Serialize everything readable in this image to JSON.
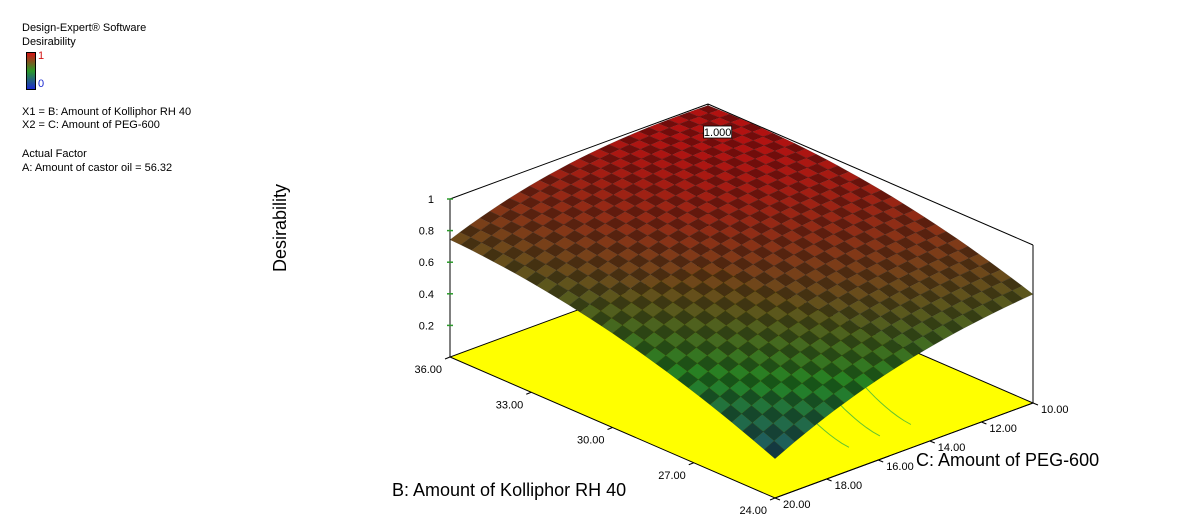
{
  "header": {
    "software": "Design-Expert® Software",
    "response": "Desirability",
    "colorbar_high": "1",
    "colorbar_low": "0",
    "x1": "X1 = B: Amount of Kolliphor RH 40",
    "x2": "X2 = C: Amount of PEG-600",
    "actual_factor_heading": "Actual Factor",
    "actual_factor": "A: Amount of castor oil = 56.32"
  },
  "chart_data": {
    "type": "surface3d",
    "zlabel": "Desirability",
    "xlabel": "B: Amount of Kolliphor RH 40",
    "ylabel": "C: Amount of PEG-600",
    "x_ticks": [
      "36.00",
      "33.00",
      "30.00",
      "27.00",
      "24.00"
    ],
    "y_ticks": [
      "10.00",
      "12.00",
      "14.00",
      "16.00",
      "18.00",
      "20.00"
    ],
    "z_ticks": [
      "1",
      "0.8",
      "0.6",
      "0.4",
      "0.2"
    ],
    "xlim": [
      24,
      36
    ],
    "ylim": [
      10,
      20
    ],
    "zlim": [
      0,
      1
    ],
    "peak_label": "1.000",
    "peak": {
      "B": 34.5,
      "C": 11.2,
      "desirability": 1.0
    },
    "floor_color": "#ffff00",
    "colors": {
      "high": "#d21414",
      "mid": "#2a9a2a",
      "low": "#1c2ad0"
    }
  }
}
